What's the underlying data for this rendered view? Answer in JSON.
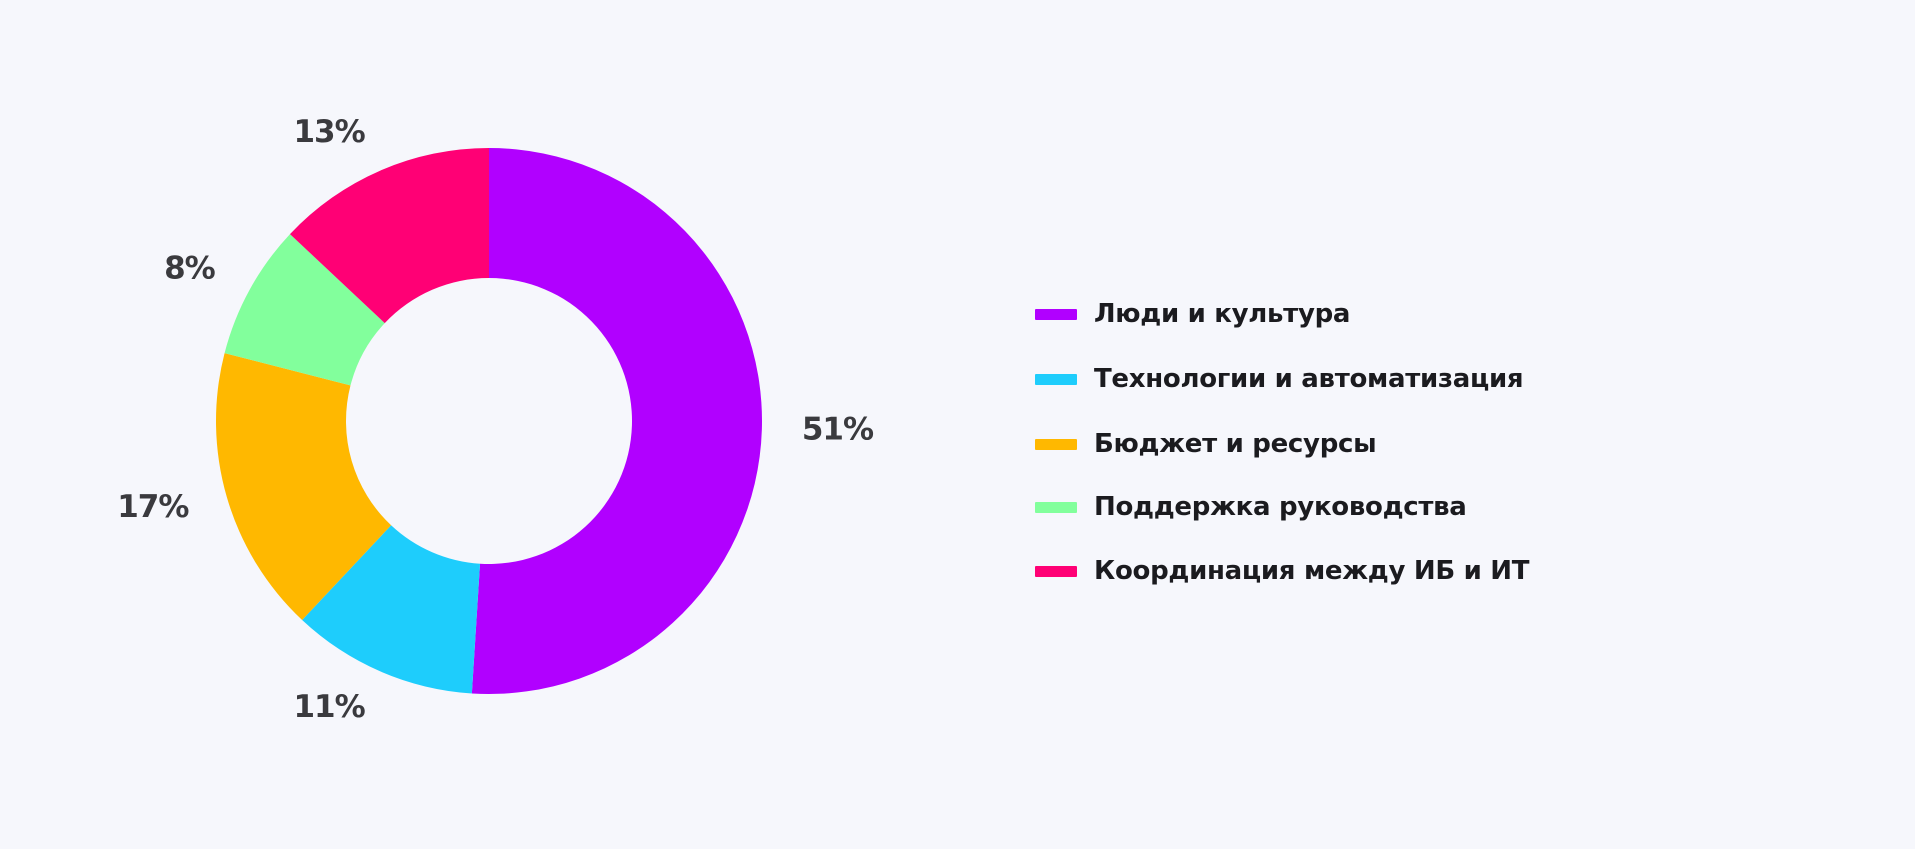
{
  "chart_data": {
    "type": "pie",
    "variant": "donut",
    "title": "",
    "legend_position": "right",
    "slices": [
      {
        "label": "Люди и культура",
        "value": 51,
        "value_label": "51%",
        "color": "#b100ff"
      },
      {
        "label": "Технологии и автоматизация",
        "value": 11,
        "value_label": "11%",
        "color": "#1ecdfc"
      },
      {
        "label": "Бюджет и ресурсы",
        "value": 17,
        "value_label": "17%",
        "color": "#ffb800"
      },
      {
        "label": "Поддержка руководства",
        "value": 8,
        "value_label": "8%",
        "color": "#82ff9c"
      },
      {
        "label": "Координация между ИБ и ИТ",
        "value": 13,
        "value_label": "13%",
        "color": "#ff0075"
      }
    ]
  }
}
